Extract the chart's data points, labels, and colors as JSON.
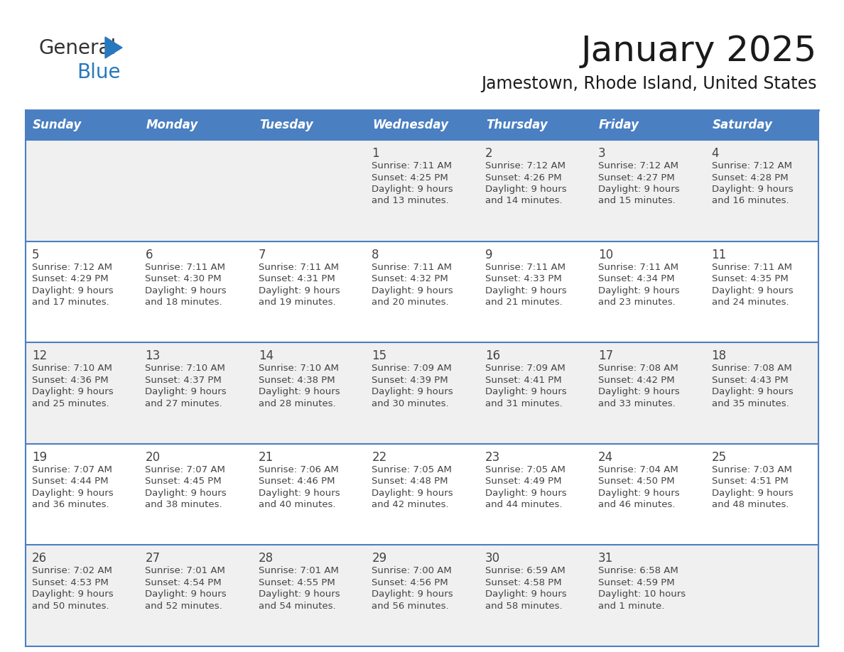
{
  "title": "January 2025",
  "subtitle": "Jamestown, Rhode Island, United States",
  "days_of_week": [
    "Sunday",
    "Monday",
    "Tuesday",
    "Wednesday",
    "Thursday",
    "Friday",
    "Saturday"
  ],
  "header_bg": "#4a7fc1",
  "header_text_color": "#FFFFFF",
  "cell_bg_odd": "#F0F0F0",
  "cell_bg_even": "#FFFFFF",
  "border_color": "#4a7fc1",
  "text_color": "#444444",
  "title_color": "#1a1a1a",
  "weeks": [
    [
      {
        "day": null,
        "info": null
      },
      {
        "day": null,
        "info": null
      },
      {
        "day": null,
        "info": null
      },
      {
        "day": 1,
        "info": {
          "sunrise": "7:11 AM",
          "sunset": "4:25 PM",
          "daylight": "9 hours",
          "daylight2": "and 13 minutes."
        }
      },
      {
        "day": 2,
        "info": {
          "sunrise": "7:12 AM",
          "sunset": "4:26 PM",
          "daylight": "9 hours",
          "daylight2": "and 14 minutes."
        }
      },
      {
        "day": 3,
        "info": {
          "sunrise": "7:12 AM",
          "sunset": "4:27 PM",
          "daylight": "9 hours",
          "daylight2": "and 15 minutes."
        }
      },
      {
        "day": 4,
        "info": {
          "sunrise": "7:12 AM",
          "sunset": "4:28 PM",
          "daylight": "9 hours",
          "daylight2": "and 16 minutes."
        }
      }
    ],
    [
      {
        "day": 5,
        "info": {
          "sunrise": "7:12 AM",
          "sunset": "4:29 PM",
          "daylight": "9 hours",
          "daylight2": "and 17 minutes."
        }
      },
      {
        "day": 6,
        "info": {
          "sunrise": "7:11 AM",
          "sunset": "4:30 PM",
          "daylight": "9 hours",
          "daylight2": "and 18 minutes."
        }
      },
      {
        "day": 7,
        "info": {
          "sunrise": "7:11 AM",
          "sunset": "4:31 PM",
          "daylight": "9 hours",
          "daylight2": "and 19 minutes."
        }
      },
      {
        "day": 8,
        "info": {
          "sunrise": "7:11 AM",
          "sunset": "4:32 PM",
          "daylight": "9 hours",
          "daylight2": "and 20 minutes."
        }
      },
      {
        "day": 9,
        "info": {
          "sunrise": "7:11 AM",
          "sunset": "4:33 PM",
          "daylight": "9 hours",
          "daylight2": "and 21 minutes."
        }
      },
      {
        "day": 10,
        "info": {
          "sunrise": "7:11 AM",
          "sunset": "4:34 PM",
          "daylight": "9 hours",
          "daylight2": "and 23 minutes."
        }
      },
      {
        "day": 11,
        "info": {
          "sunrise": "7:11 AM",
          "sunset": "4:35 PM",
          "daylight": "9 hours",
          "daylight2": "and 24 minutes."
        }
      }
    ],
    [
      {
        "day": 12,
        "info": {
          "sunrise": "7:10 AM",
          "sunset": "4:36 PM",
          "daylight": "9 hours",
          "daylight2": "and 25 minutes."
        }
      },
      {
        "day": 13,
        "info": {
          "sunrise": "7:10 AM",
          "sunset": "4:37 PM",
          "daylight": "9 hours",
          "daylight2": "and 27 minutes."
        }
      },
      {
        "day": 14,
        "info": {
          "sunrise": "7:10 AM",
          "sunset": "4:38 PM",
          "daylight": "9 hours",
          "daylight2": "and 28 minutes."
        }
      },
      {
        "day": 15,
        "info": {
          "sunrise": "7:09 AM",
          "sunset": "4:39 PM",
          "daylight": "9 hours",
          "daylight2": "and 30 minutes."
        }
      },
      {
        "day": 16,
        "info": {
          "sunrise": "7:09 AM",
          "sunset": "4:41 PM",
          "daylight": "9 hours",
          "daylight2": "and 31 minutes."
        }
      },
      {
        "day": 17,
        "info": {
          "sunrise": "7:08 AM",
          "sunset": "4:42 PM",
          "daylight": "9 hours",
          "daylight2": "and 33 minutes."
        }
      },
      {
        "day": 18,
        "info": {
          "sunrise": "7:08 AM",
          "sunset": "4:43 PM",
          "daylight": "9 hours",
          "daylight2": "and 35 minutes."
        }
      }
    ],
    [
      {
        "day": 19,
        "info": {
          "sunrise": "7:07 AM",
          "sunset": "4:44 PM",
          "daylight": "9 hours",
          "daylight2": "and 36 minutes."
        }
      },
      {
        "day": 20,
        "info": {
          "sunrise": "7:07 AM",
          "sunset": "4:45 PM",
          "daylight": "9 hours",
          "daylight2": "and 38 minutes."
        }
      },
      {
        "day": 21,
        "info": {
          "sunrise": "7:06 AM",
          "sunset": "4:46 PM",
          "daylight": "9 hours",
          "daylight2": "and 40 minutes."
        }
      },
      {
        "day": 22,
        "info": {
          "sunrise": "7:05 AM",
          "sunset": "4:48 PM",
          "daylight": "9 hours",
          "daylight2": "and 42 minutes."
        }
      },
      {
        "day": 23,
        "info": {
          "sunrise": "7:05 AM",
          "sunset": "4:49 PM",
          "daylight": "9 hours",
          "daylight2": "and 44 minutes."
        }
      },
      {
        "day": 24,
        "info": {
          "sunrise": "7:04 AM",
          "sunset": "4:50 PM",
          "daylight": "9 hours",
          "daylight2": "and 46 minutes."
        }
      },
      {
        "day": 25,
        "info": {
          "sunrise": "7:03 AM",
          "sunset": "4:51 PM",
          "daylight": "9 hours",
          "daylight2": "and 48 minutes."
        }
      }
    ],
    [
      {
        "day": 26,
        "info": {
          "sunrise": "7:02 AM",
          "sunset": "4:53 PM",
          "daylight": "9 hours",
          "daylight2": "and 50 minutes."
        }
      },
      {
        "day": 27,
        "info": {
          "sunrise": "7:01 AM",
          "sunset": "4:54 PM",
          "daylight": "9 hours",
          "daylight2": "and 52 minutes."
        }
      },
      {
        "day": 28,
        "info": {
          "sunrise": "7:01 AM",
          "sunset": "4:55 PM",
          "daylight": "9 hours",
          "daylight2": "and 54 minutes."
        }
      },
      {
        "day": 29,
        "info": {
          "sunrise": "7:00 AM",
          "sunset": "4:56 PM",
          "daylight": "9 hours",
          "daylight2": "and 56 minutes."
        }
      },
      {
        "day": 30,
        "info": {
          "sunrise": "6:59 AM",
          "sunset": "4:58 PM",
          "daylight": "9 hours",
          "daylight2": "and 58 minutes."
        }
      },
      {
        "day": 31,
        "info": {
          "sunrise": "6:58 AM",
          "sunset": "4:59 PM",
          "daylight": "10 hours",
          "daylight2": "and 1 minute."
        }
      },
      {
        "day": null,
        "info": null
      }
    ]
  ]
}
